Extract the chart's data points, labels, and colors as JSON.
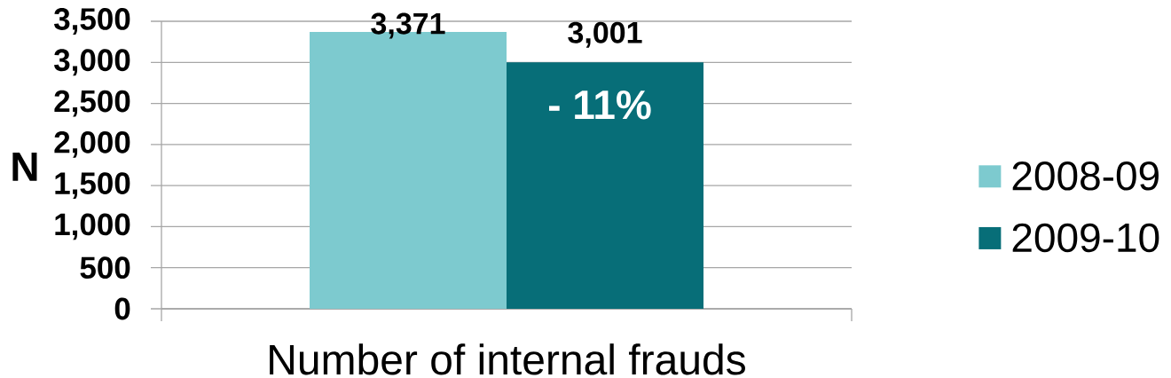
{
  "chart_data": {
    "type": "bar",
    "ylabel": "N",
    "categories": [
      "Number of internal frauds"
    ],
    "series": [
      {
        "name": "2008-09",
        "color": "#7dcacf",
        "values": [
          3371
        ],
        "value_labels": [
          "3,371"
        ]
      },
      {
        "name": "2009-10",
        "color": "#076e78",
        "values": [
          3001
        ],
        "value_labels": [
          "3,001"
        ]
      }
    ],
    "ylim": [
      0,
      3500
    ],
    "yticks": [
      0,
      500,
      {
        "value": 1000,
        "label": "1,000"
      },
      {
        "value": 1500,
        "label": "1,500"
      },
      {
        "value": 2000,
        "label": "2,000"
      },
      {
        "value": 2500,
        "label": "2,500"
      },
      {
        "value": 3000,
        "label": "3,000"
      },
      {
        "value": 3500,
        "label": "3,500"
      }
    ],
    "grid": "y",
    "legend": "right",
    "annotations": [
      "- 11%"
    ]
  }
}
